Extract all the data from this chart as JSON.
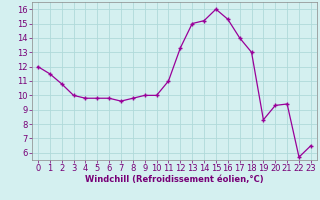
{
  "x": [
    0,
    1,
    2,
    3,
    4,
    5,
    6,
    7,
    8,
    9,
    10,
    11,
    12,
    13,
    14,
    15,
    16,
    17,
    18,
    19,
    20,
    21,
    22,
    23
  ],
  "y": [
    12.0,
    11.5,
    10.8,
    10.0,
    9.8,
    9.8,
    9.8,
    9.6,
    9.8,
    10.0,
    10.0,
    11.0,
    13.3,
    15.0,
    15.2,
    16.0,
    15.3,
    14.0,
    13.0,
    8.3,
    9.3,
    9.4,
    5.7,
    6.5
  ],
  "line_color": "#990099",
  "marker": "+",
  "markersize": 3.5,
  "linewidth": 0.9,
  "xlabel": "Windchill (Refroidissement éolien,°C)",
  "xlabel_fontsize": 6.0,
  "bg_color": "#d4f0f0",
  "grid_color": "#b0dada",
  "tick_label_fontsize": 6.0,
  "ylim": [
    5.5,
    16.5
  ],
  "xlim": [
    -0.5,
    23.5
  ],
  "yticks": [
    6,
    7,
    8,
    9,
    10,
    11,
    12,
    13,
    14,
    15,
    16
  ],
  "xticks": [
    0,
    1,
    2,
    3,
    4,
    5,
    6,
    7,
    8,
    9,
    10,
    11,
    12,
    13,
    14,
    15,
    16,
    17,
    18,
    19,
    20,
    21,
    22,
    23
  ],
  "label_color": "#770077"
}
